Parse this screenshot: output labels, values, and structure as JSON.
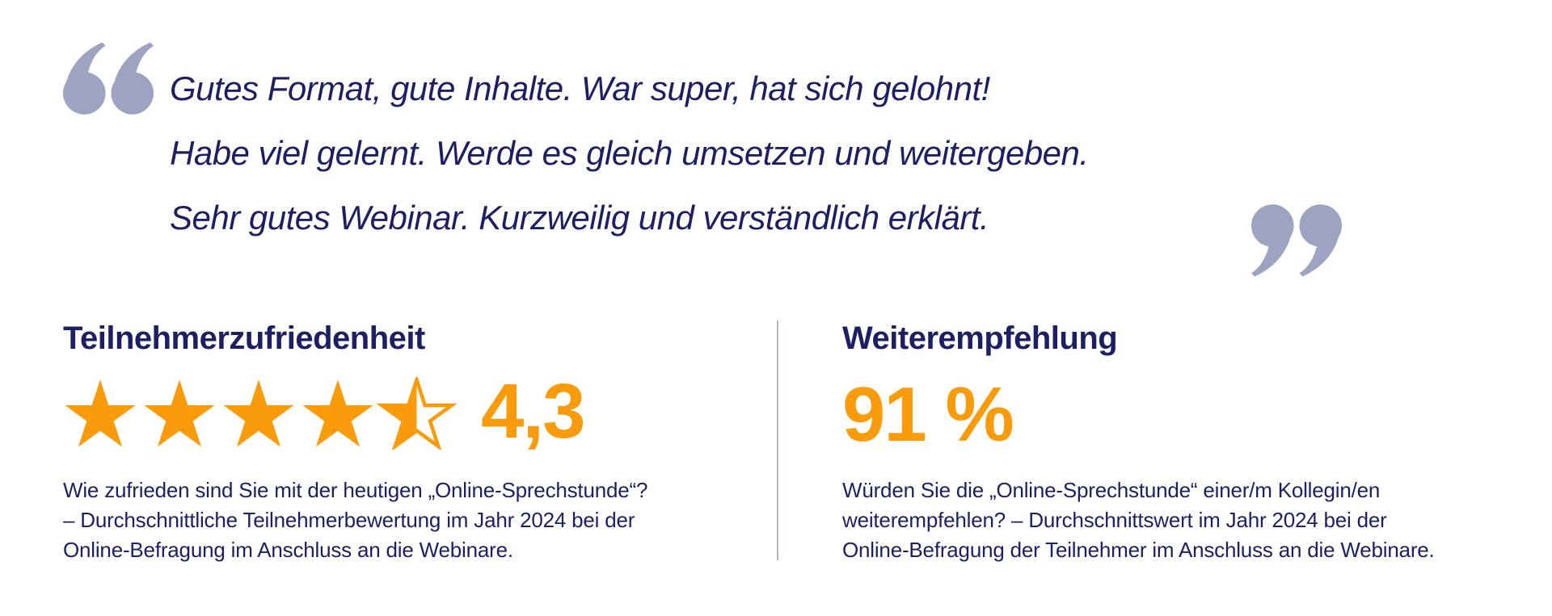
{
  "colors": {
    "text_navy": "#1E1E64",
    "accent_orange": "#F99B0A",
    "quote_mark_lavender": "#9FA3C2",
    "divider_gray": "#B3B5C9",
    "background": "#FFFFFF"
  },
  "testimonial": {
    "lines": [
      "Gutes Format, gute Inhalte. War super, hat sich gelohnt!",
      "Habe viel gelernt. Werde es gleich umsetzen und weitergeben.",
      "Sehr gutes Webinar. Kurzweilig und verständlich erklärt."
    ]
  },
  "stats": {
    "satisfaction": {
      "title": "Teilnehmerzufriedenheit",
      "value": "4,3",
      "rating_max": 5,
      "stars_full": 4,
      "stars_half": 1,
      "description_lines": [
        "Wie zufrieden sind Sie mit der heutigen „Online-Sprechstunde“?",
        "– Durchschnittliche Teilnehmerbewertung im Jahr 2024 bei der",
        "Online-Befragung im Anschluss an die Webinare."
      ]
    },
    "recommendation": {
      "title": "Weiterempfehlung",
      "value": "91 %",
      "description_lines": [
        "Würden Sie die „Online-Sprechstunde“ einer/m Kollegin/en",
        "weiterempfehlen? – Durchschnittswert im Jahr 2024 bei der",
        "Online-Befragung der Teilnehmer im Anschluss an die Webinare."
      ]
    }
  }
}
